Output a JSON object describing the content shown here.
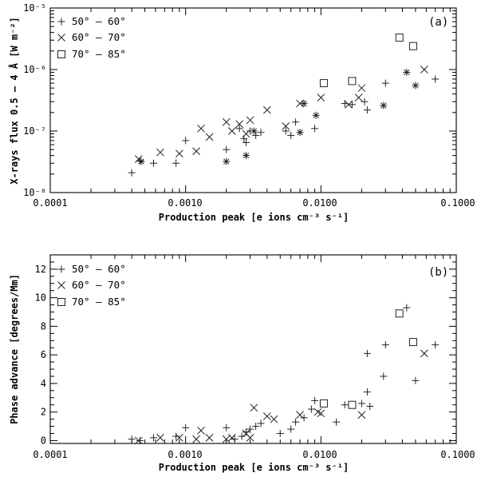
{
  "chart_data": [
    {
      "type": "scatter",
      "panel_label": "(a)",
      "xlabel": "Production peak [e ions cm⁻³ s⁻¹]",
      "ylabel": "X-rays flux 0.5 – 4 Å [W m⁻²]",
      "x_scale": "log",
      "y_scale": "log",
      "xlim": [
        0.0001,
        0.1
      ],
      "ylim": [
        1e-08,
        1e-05
      ],
      "x_tick_labels": [
        "0.0001",
        "0.0010",
        "0.0100",
        "0.1000"
      ],
      "y_tick_labels": [
        "10⁻⁸",
        "10⁻⁷",
        "10⁻⁶",
        "10⁻⁵"
      ],
      "legend_position": "top-left",
      "series": [
        {
          "name": "50° – 60°",
          "marker": "plus",
          "points": [
            [
              0.0004,
              2.1e-08
            ],
            [
              0.00046,
              3.3e-08
            ],
            [
              0.00058,
              3e-08
            ],
            [
              0.00085,
              3e-08
            ],
            [
              0.001,
              7e-08
            ],
            [
              0.002,
              5e-08
            ],
            [
              0.0025,
              1.1e-07
            ],
            [
              0.0027,
              7.5e-08
            ],
            [
              0.0028,
              6.5e-08
            ],
            [
              0.003,
              1e-07
            ],
            [
              0.0033,
              8.5e-08
            ],
            [
              0.0036,
              9.5e-08
            ],
            [
              0.0055,
              1e-07
            ],
            [
              0.006,
              8.5e-08
            ],
            [
              0.0065,
              1.4e-07
            ],
            [
              0.009,
              1.1e-07
            ],
            [
              0.015,
              2.8e-07
            ],
            [
              0.017,
              2.7e-07
            ],
            [
              0.021,
              3e-07
            ],
            [
              0.022,
              2.2e-07
            ],
            [
              0.03,
              6e-07
            ],
            [
              0.07,
              7e-07
            ]
          ]
        },
        {
          "name": "60° – 70°",
          "marker": "cross",
          "points": [
            [
              0.00045,
              3.5e-08
            ],
            [
              0.00065,
              4.5e-08
            ],
            [
              0.0009,
              4.3e-08
            ],
            [
              0.0012,
              4.7e-08
            ],
            [
              0.0013,
              1.1e-07
            ],
            [
              0.0015,
              8e-08
            ],
            [
              0.002,
              1.4e-07
            ],
            [
              0.0022,
              1e-07
            ],
            [
              0.0025,
              1.3e-07
            ],
            [
              0.0028,
              9e-08
            ],
            [
              0.003,
              1.5e-07
            ],
            [
              0.004,
              2.2e-07
            ],
            [
              0.0055,
              1.2e-07
            ],
            [
              0.007,
              2.8e-07
            ],
            [
              0.01,
              3.5e-07
            ],
            [
              0.016,
              2.7e-07
            ],
            [
              0.019,
              3.5e-07
            ],
            [
              0.02,
              5e-07
            ],
            [
              0.058,
              1e-06
            ]
          ]
        },
        {
          "name": "70° – 85°",
          "marker": "square",
          "points": [
            [
              0.0105,
              6e-07
            ],
            [
              0.017,
              6.5e-07
            ],
            [
              0.038,
              3.3e-06
            ],
            [
              0.048,
              2.4e-06
            ]
          ]
        },
        {
          "marker": "asterisk",
          "points": [
            [
              0.00047,
              3.2e-08
            ],
            [
              0.002,
              3.2e-08
            ],
            [
              0.0028,
              4e-08
            ],
            [
              0.0032,
              1e-07
            ],
            [
              0.007,
              9.5e-08
            ],
            [
              0.0075,
              2.8e-07
            ],
            [
              0.0092,
              1.8e-07
            ],
            [
              0.029,
              2.6e-07
            ],
            [
              0.043,
              9e-07
            ],
            [
              0.05,
              5.5e-07
            ]
          ]
        }
      ]
    },
    {
      "type": "scatter",
      "panel_label": "(b)",
      "xlabel": "Production peak [e ions cm⁻³ s⁻¹]",
      "ylabel": "Phase advance [degrees/Mm]",
      "x_scale": "log",
      "y_scale": "linear",
      "xlim": [
        0.0001,
        0.1
      ],
      "ylim": [
        -0.2,
        13
      ],
      "x_tick_labels": [
        "0.0001",
        "0.0010",
        "0.0100",
        "0.1000"
      ],
      "y_tick_labels": [
        "0",
        "2",
        "4",
        "6",
        "8",
        "10",
        "12"
      ],
      "legend_position": "top-left",
      "series": [
        {
          "name": "50° – 60°",
          "marker": "plus",
          "points": [
            [
              0.0004,
              0.1
            ],
            [
              0.00046,
              0.0
            ],
            [
              0.00058,
              0.2
            ],
            [
              0.00085,
              0.3
            ],
            [
              0.001,
              0.9
            ],
            [
              0.002,
              0.9
            ],
            [
              0.0023,
              0.1
            ],
            [
              0.0026,
              0.3
            ],
            [
              0.0028,
              0.6
            ],
            [
              0.003,
              0.8
            ],
            [
              0.0033,
              1.0
            ],
            [
              0.0036,
              1.2
            ],
            [
              0.005,
              0.5
            ],
            [
              0.006,
              0.8
            ],
            [
              0.0065,
              1.3
            ],
            [
              0.0075,
              1.6
            ],
            [
              0.0085,
              2.2
            ],
            [
              0.009,
              2.8
            ],
            [
              0.013,
              1.3
            ],
            [
              0.015,
              2.5
            ],
            [
              0.02,
              2.6
            ],
            [
              0.022,
              3.4
            ],
            [
              0.023,
              2.4
            ],
            [
              0.022,
              6.1
            ],
            [
              0.029,
              4.5
            ],
            [
              0.03,
              6.7
            ],
            [
              0.043,
              9.3
            ],
            [
              0.05,
              4.2
            ],
            [
              0.07,
              6.7
            ]
          ]
        },
        {
          "name": "60° – 70°",
          "marker": "cross",
          "points": [
            [
              0.00045,
              0.0
            ],
            [
              0.00065,
              0.2
            ],
            [
              0.0009,
              0.2
            ],
            [
              0.0012,
              0.1
            ],
            [
              0.0013,
              0.7
            ],
            [
              0.0015,
              0.2
            ],
            [
              0.002,
              0.1
            ],
            [
              0.0022,
              0.2
            ],
            [
              0.0028,
              0.5
            ],
            [
              0.003,
              0.2
            ],
            [
              0.0032,
              2.3
            ],
            [
              0.004,
              1.7
            ],
            [
              0.0045,
              1.5
            ],
            [
              0.007,
              1.8
            ],
            [
              0.0095,
              2.0
            ],
            [
              0.01,
              1.9
            ],
            [
              0.02,
              1.8
            ],
            [
              0.058,
              6.1
            ]
          ]
        },
        {
          "name": "70° – 85°",
          "marker": "square",
          "points": [
            [
              0.0105,
              2.6
            ],
            [
              0.017,
              2.5
            ],
            [
              0.038,
              8.9
            ],
            [
              0.048,
              6.9
            ]
          ]
        }
      ]
    }
  ]
}
